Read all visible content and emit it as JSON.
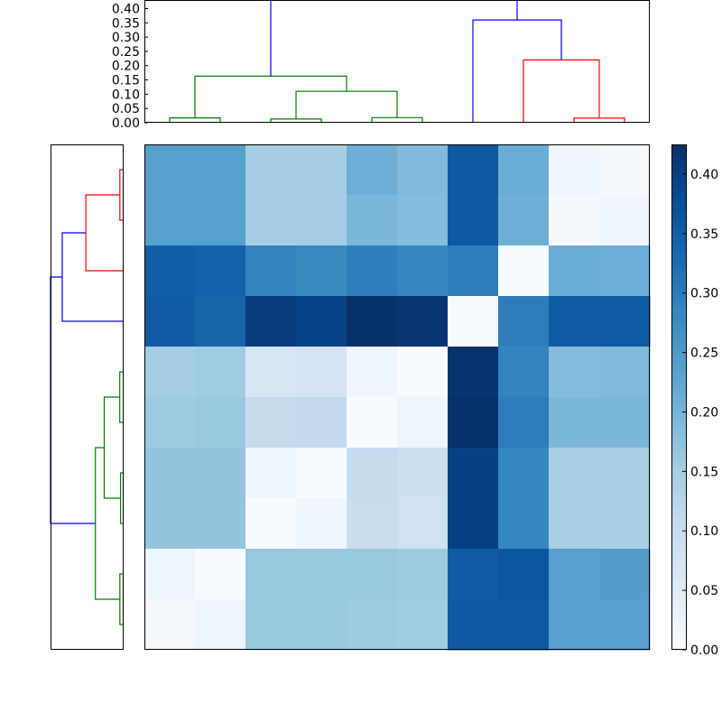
{
  "chart_data": {
    "type": "heatmap",
    "title": "",
    "colormap": "Blues",
    "grid": false,
    "matrix": [
      [
        0.24,
        0.24,
        0.15,
        0.15,
        0.21,
        0.19,
        0.36,
        0.215,
        0.015,
        0.005
      ],
      [
        0.24,
        0.24,
        0.15,
        0.15,
        0.195,
        0.185,
        0.36,
        0.21,
        0.005,
        0.015
      ],
      [
        0.35,
        0.345,
        0.29,
        0.28,
        0.3,
        0.285,
        0.3,
        0.0,
        0.215,
        0.21
      ],
      [
        0.355,
        0.34,
        0.405,
        0.395,
        0.425,
        0.415,
        0.0,
        0.3,
        0.355,
        0.355
      ],
      [
        0.15,
        0.155,
        0.07,
        0.08,
        0.02,
        0.0,
        0.42,
        0.29,
        0.185,
        0.19
      ],
      [
        0.16,
        0.165,
        0.105,
        0.11,
        0.0,
        0.02,
        0.43,
        0.3,
        0.195,
        0.195
      ],
      [
        0.17,
        0.17,
        0.02,
        0.0,
        0.105,
        0.09,
        0.4,
        0.285,
        0.145,
        0.145
      ],
      [
        0.17,
        0.17,
        0.0,
        0.015,
        0.1,
        0.085,
        0.4,
        0.285,
        0.145,
        0.145
      ],
      [
        0.02,
        0.0,
        0.165,
        0.165,
        0.165,
        0.16,
        0.355,
        0.365,
        0.24,
        0.245
      ],
      [
        0.005,
        0.02,
        0.165,
        0.165,
        0.16,
        0.155,
        0.36,
        0.36,
        0.24,
        0.24
      ]
    ],
    "colorbar": {
      "min": 0.0,
      "max": 0.425,
      "ticks": [
        "0.00",
        "0.05",
        "0.10",
        "0.15",
        "0.20",
        "0.25",
        "0.30",
        "0.35",
        "0.40"
      ]
    },
    "top_dendrogram": {
      "ylim": [
        0.0,
        0.43
      ],
      "yticks": [
        "0.00",
        "0.05",
        "0.10",
        "0.15",
        "0.20",
        "0.25",
        "0.30",
        "0.35",
        "0.40"
      ],
      "links": [
        {
          "icoord": [
            5,
            5,
            15,
            15
          ],
          "dcoord": [
            0,
            0.017,
            0.017,
            0
          ],
          "color": "#008000"
        },
        {
          "icoord": [
            25,
            25,
            35,
            35
          ],
          "dcoord": [
            0,
            0.013,
            0.013,
            0
          ],
          "color": "#008000"
        },
        {
          "icoord": [
            45,
            45,
            55,
            55
          ],
          "dcoord": [
            0,
            0.018,
            0.018,
            0
          ],
          "color": "#008000"
        },
        {
          "icoord": [
            30,
            30,
            50,
            50
          ],
          "dcoord": [
            0.013,
            0.11,
            0.11,
            0.018
          ],
          "color": "#008000"
        },
        {
          "icoord": [
            10,
            10,
            40,
            40
          ],
          "dcoord": [
            0.017,
            0.163,
            0.163,
            0.11
          ],
          "color": "#008000"
        },
        {
          "icoord": [
            85,
            85,
            95,
            95
          ],
          "dcoord": [
            0,
            0.016,
            0.016,
            0
          ],
          "color": "#ff0000"
        },
        {
          "icoord": [
            75,
            75,
            90,
            90
          ],
          "dcoord": [
            0,
            0.22,
            0.22,
            0.016
          ],
          "color": "#ff0000"
        },
        {
          "icoord": [
            65,
            65,
            82.5,
            82.5
          ],
          "dcoord": [
            0,
            0.36,
            0.36,
            0.22
          ],
          "color": "#0000ff"
        },
        {
          "icoord": [
            25,
            25,
            73.75,
            73.75
          ],
          "dcoord": [
            0.163,
            0.43,
            0.43,
            0.36
          ],
          "color": "#0000ff"
        }
      ]
    },
    "left_dendrogram": {
      "leaf_order": "top-to-bottom",
      "links": [
        {
          "icoord": [
            5,
            5,
            15,
            15
          ],
          "dcoord": [
            0,
            0.017,
            0.017,
            0
          ],
          "color": "#ff0000"
        },
        {
          "icoord": [
            10,
            10,
            25,
            25
          ],
          "dcoord": [
            0.017,
            0.22,
            0.22,
            0
          ],
          "color": "#ff0000"
        },
        {
          "icoord": [
            17.5,
            17.5,
            35,
            35
          ],
          "dcoord": [
            0.22,
            0.36,
            0.36,
            0
          ],
          "color": "#0000ff"
        },
        {
          "icoord": [
            45,
            45,
            55,
            55
          ],
          "dcoord": [
            0,
            0.018,
            0.018,
            0
          ],
          "color": "#008000"
        },
        {
          "icoord": [
            65,
            65,
            75,
            75
          ],
          "dcoord": [
            0,
            0.013,
            0.013,
            0
          ],
          "color": "#008000"
        },
        {
          "icoord": [
            50,
            50,
            70,
            70
          ],
          "dcoord": [
            0.018,
            0.11,
            0.11,
            0.013
          ],
          "color": "#008000"
        },
        {
          "icoord": [
            85,
            85,
            95,
            95
          ],
          "dcoord": [
            0,
            0.017,
            0.017,
            0
          ],
          "color": "#008000"
        },
        {
          "icoord": [
            60,
            60,
            90,
            90
          ],
          "dcoord": [
            0.11,
            0.163,
            0.163,
            0.017
          ],
          "color": "#008000"
        },
        {
          "icoord": [
            26.25,
            26.25,
            75,
            75
          ],
          "dcoord": [
            0.36,
            0.43,
            0.43,
            0.163
          ],
          "color": "#0000ff"
        }
      ]
    }
  }
}
